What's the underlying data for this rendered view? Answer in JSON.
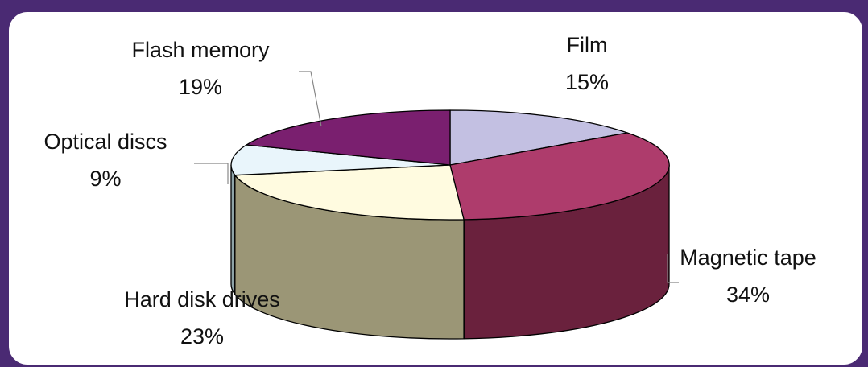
{
  "chart_data": {
    "type": "pie",
    "style": "3d",
    "slices": [
      {
        "label": "Film",
        "value": 15,
        "value_label": "15%",
        "color": "#c3c0e2",
        "side_color": "#8a86b0"
      },
      {
        "label": "Magnetic tape",
        "value": 34,
        "value_label": "34%",
        "color": "#ae3c6c",
        "side_color": "#6a213d"
      },
      {
        "label": "Hard disk drives",
        "value": 23,
        "value_label": "23%",
        "color": "#fffbe0",
        "side_color": "#9b9676"
      },
      {
        "label": "Optical discs",
        "value": 9,
        "value_label": "9%",
        "color": "#e9f5fb",
        "side_color": "#8ea3a8"
      },
      {
        "label": "Flash memory",
        "value": 19,
        "value_label": "19%",
        "color": "#7a1f6f",
        "side_color": "#4a1444"
      }
    ]
  },
  "colors": {
    "frame_border": "#4a2a73",
    "background": "#ffffff"
  }
}
